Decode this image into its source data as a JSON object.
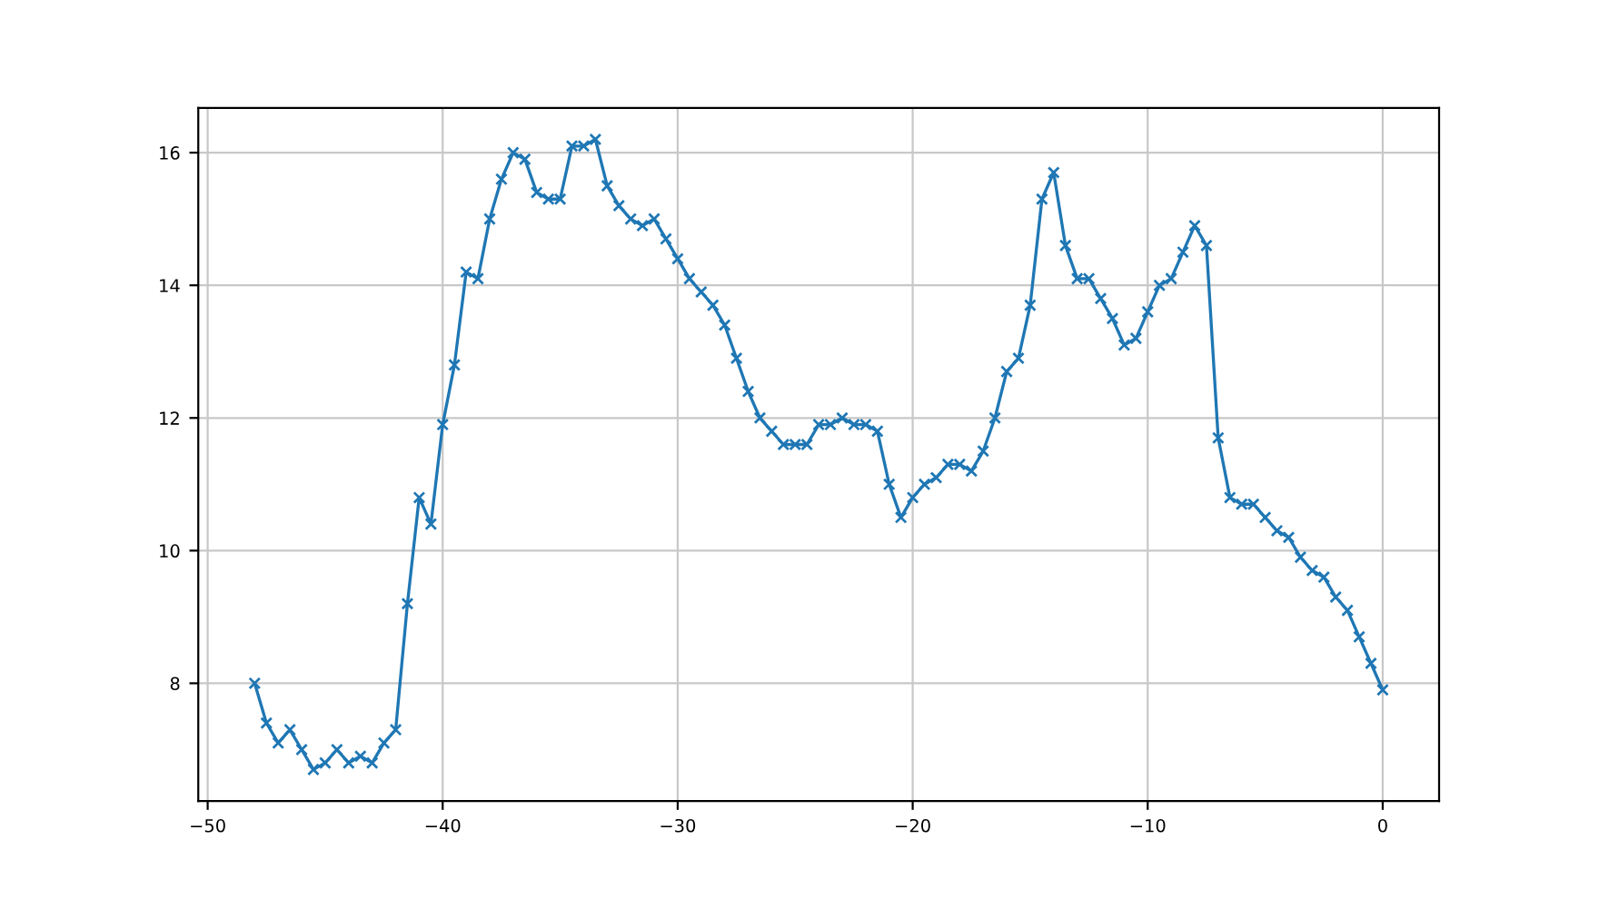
{
  "chart_data": {
    "type": "line",
    "x": [
      -48,
      -47.5,
      -47,
      -46.5,
      -46,
      -45.5,
      -45,
      -44.5,
      -44,
      -43.5,
      -43,
      -42.5,
      -42,
      -41.5,
      -41,
      -40.5,
      -40,
      -39.5,
      -39,
      -38.5,
      -38,
      -37.5,
      -37,
      -36.5,
      -36,
      -35.5,
      -35,
      -34.5,
      -34,
      -33.5,
      -33,
      -32.5,
      -32,
      -31.5,
      -31,
      -30.5,
      -30,
      -29.5,
      -29,
      -28.5,
      -28,
      -27.5,
      -27,
      -26.5,
      -26,
      -25.5,
      -25,
      -24.5,
      -24,
      -23.5,
      -23,
      -22.5,
      -22,
      -21.5,
      -21,
      -20.5,
      -20,
      -19.5,
      -19,
      -18.5,
      -18,
      -17.5,
      -17,
      -16.5,
      -16,
      -15.5,
      -15,
      -14.5,
      -14,
      -13.5,
      -13,
      -12.5,
      -12,
      -11.5,
      -11,
      -10.5,
      -10,
      -9.5,
      -9,
      -8.5,
      -8,
      -7.5,
      -7,
      -6.5,
      -6,
      -5.5,
      -5,
      -4.5,
      -4,
      -3.5,
      -3,
      -2.5,
      -2,
      -1.5,
      -1,
      -0.5,
      0
    ],
    "series": [
      {
        "color": "#1f77b4",
        "values": [
          8.0,
          7.4,
          7.1,
          7.3,
          7.0,
          6.7,
          6.8,
          7.0,
          6.8,
          6.9,
          6.8,
          7.1,
          7.3,
          9.2,
          10.8,
          10.4,
          11.9,
          12.8,
          14.2,
          14.1,
          15.0,
          15.6,
          16.0,
          15.9,
          15.4,
          15.3,
          15.3,
          16.1,
          16.1,
          16.2,
          15.5,
          15.2,
          15.0,
          14.9,
          15.0,
          14.7,
          14.4,
          14.1,
          13.9,
          13.7,
          13.4,
          12.9,
          12.4,
          12.0,
          11.8,
          11.6,
          11.6,
          11.6,
          11.9,
          11.9,
          12.0,
          11.9,
          11.9,
          11.8,
          11.0,
          10.5,
          10.8,
          11.0,
          11.1,
          11.3,
          11.3,
          11.2,
          11.5,
          12.0,
          12.7,
          12.9,
          13.7,
          15.3,
          15.7,
          14.6,
          14.1,
          14.1,
          13.8,
          13.5,
          13.1,
          13.2,
          13.6,
          14.0,
          14.1,
          14.5,
          14.9,
          14.6,
          11.7,
          10.8,
          10.7,
          10.7,
          10.5,
          10.3,
          10.2,
          9.9,
          9.7,
          9.6,
          9.3,
          9.1,
          8.7,
          8.3,
          7.9
        ]
      }
    ],
    "xlim": [
      -50.4,
      2.4
    ],
    "xticks": [
      {
        "value": -50,
        "label": "−50"
      },
      {
        "value": -40,
        "label": "−40"
      },
      {
        "value": -30,
        "label": "−30"
      },
      {
        "value": -20,
        "label": "−20"
      },
      {
        "value": -10,
        "label": "−10"
      },
      0
    ],
    "ylim": [
      6.225,
      16.675
    ],
    "yticks": [
      8,
      10,
      12,
      14,
      16
    ],
    "grid": true,
    "marker": "cross",
    "line_style": "solid"
  }
}
